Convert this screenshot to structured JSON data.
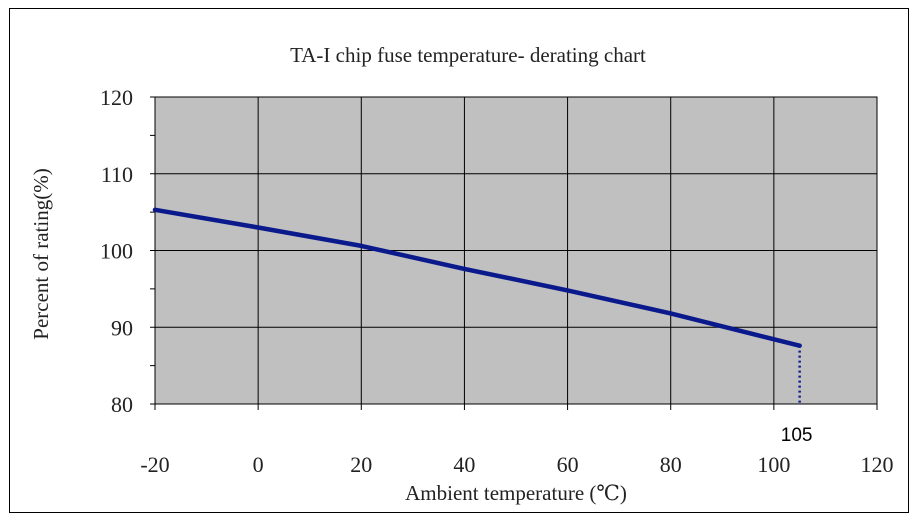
{
  "chart_data": {
    "type": "line",
    "title": "TA-I chip fuse temperature- derating chart",
    "xlabel": "Ambient temperature (℃)",
    "ylabel": "Percent of rating(%)",
    "xlim": [
      -20,
      120
    ],
    "ylim": [
      80,
      120
    ],
    "x_ticks": [
      -20,
      0,
      20,
      40,
      60,
      80,
      100,
      120
    ],
    "y_ticks": [
      80,
      90,
      100,
      110,
      120
    ],
    "x_tick_labels": [
      "-20",
      "0",
      "20",
      "40",
      "60",
      "80",
      "100",
      "120"
    ],
    "y_tick_labels": [
      "80",
      "90",
      "100",
      "110",
      "120"
    ],
    "grid": true,
    "plot_background": "#c0c0c0",
    "series": [
      {
        "color": "#0a1a8c",
        "x": [
          -20,
          0,
          20,
          40,
          60,
          80,
          105
        ],
        "y": [
          105.3,
          103.0,
          100.6,
          97.6,
          94.8,
          91.8,
          87.6
        ]
      }
    ],
    "annotations": [
      {
        "text": "105",
        "x": 105,
        "style": "dotted vertical drop line from the series end to the x-axis"
      }
    ]
  }
}
